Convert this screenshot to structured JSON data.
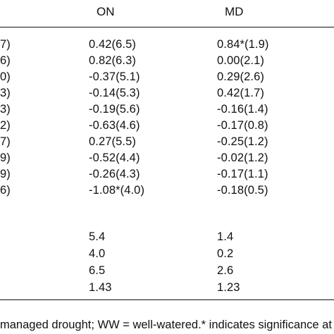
{
  "table": {
    "headers": {
      "on": "ON",
      "md": "MD"
    },
    "rows": [
      {
        "left": "7)",
        "on": "0.42(6.5)",
        "md": "0.84*(1.9)"
      },
      {
        "left": "6)",
        "on": "0.82(6.3)",
        "md": "0.00(2.1)"
      },
      {
        "left": "0)",
        "on": "-0.37(5.1)",
        "md": "0.29(2.6)"
      },
      {
        "left": "3)",
        "on": "-0.14(5.3)",
        "md": "0.42(1.7)"
      },
      {
        "left": "3)",
        "on": "-0.19(5.6)",
        "md": "-0.16(1.4)"
      },
      {
        "left": "2)",
        "on": "-0.63(4.6)",
        "md": "-0.17(0.8)"
      },
      {
        "left": "7)",
        "on": "0.27(5.5)",
        "md": "-0.25(1.2)"
      },
      {
        "left": "9)",
        "on": "-0.52(4.4)",
        "md": "-0.02(1.2)"
      },
      {
        "left": "9)",
        "on": "-0.26(4.3)",
        "md": "-0.17(1.1)"
      },
      {
        "left": "6)",
        "on": "-1.08*(4.0)",
        "md": "-0.18(0.5)"
      }
    ],
    "summary": [
      {
        "on": "5.4",
        "md": "1.4"
      },
      {
        "on": "4.0",
        "md": "0.2"
      },
      {
        "on": "6.5",
        "md": "2.6"
      },
      {
        "on": "1.43",
        "md": "1.23"
      }
    ],
    "footnote": "managed drought; WW = well-watered.* indicates significance at"
  }
}
